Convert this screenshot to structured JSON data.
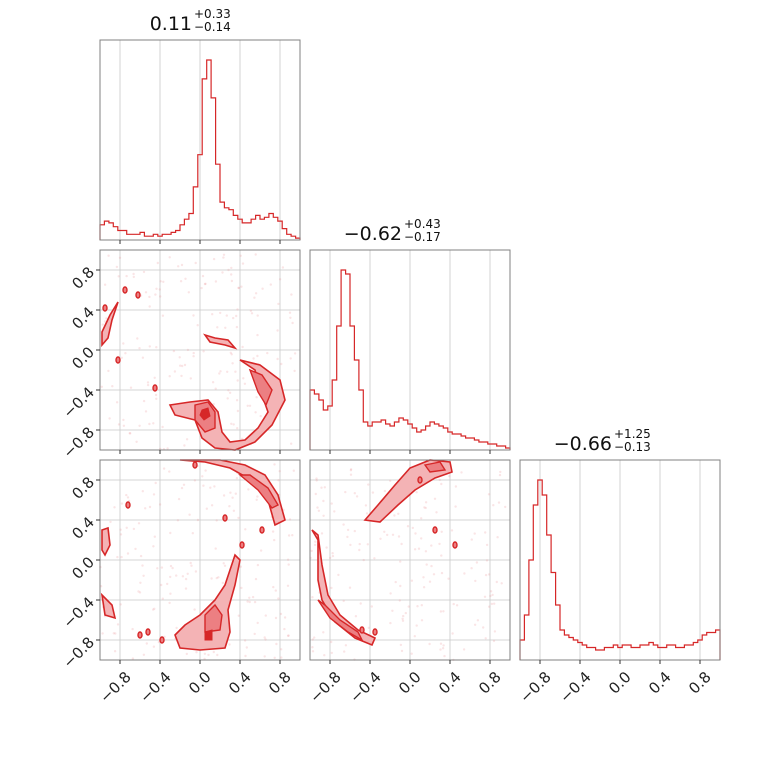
{
  "chart_data": {
    "type": "corner",
    "range": [
      -1,
      1
    ],
    "ticks": [
      -0.8,
      -0.4,
      0.0,
      0.4,
      0.8
    ],
    "tick_labels": [
      "−0.8",
      "−0.4",
      "0.0",
      "0.4",
      "0.8"
    ],
    "color": "#d62728",
    "grid": true,
    "titles": [
      {
        "value": "0.11",
        "plus": "+0.33",
        "minus": "−0.14"
      },
      {
        "value": "−0.62",
        "plus": "+0.43",
        "minus": "−0.17"
      },
      {
        "value": "−0.66",
        "plus": "+1.25",
        "minus": "−0.13"
      }
    ],
    "histograms": [
      {
        "bins_edges": [
          -1.0,
          0.8
        ],
        "values": [
          0.08,
          0.1,
          0.09,
          0.07,
          0.05,
          0.05,
          0.03,
          0.03,
          0.03,
          0.04,
          0.02,
          0.02,
          0.03,
          0.02,
          0.03,
          0.03,
          0.04,
          0.05,
          0.08,
          0.11,
          0.14,
          0.28,
          0.45,
          0.85,
          0.95,
          0.75,
          0.4,
          0.2,
          0.17,
          0.16,
          0.13,
          0.11,
          0.09,
          0.09,
          0.11,
          0.13,
          0.11,
          0.12,
          0.14,
          0.12,
          0.1,
          0.06,
          0.03,
          0.02,
          0.01
        ]
      },
      {
        "values": [
          0.3,
          0.28,
          0.25,
          0.2,
          0.22,
          0.35,
          0.62,
          0.9,
          0.88,
          0.62,
          0.45,
          0.3,
          0.14,
          0.12,
          0.14,
          0.14,
          0.15,
          0.13,
          0.12,
          0.14,
          0.16,
          0.15,
          0.13,
          0.11,
          0.09,
          0.1,
          0.12,
          0.14,
          0.13,
          0.12,
          0.11,
          0.09,
          0.08,
          0.08,
          0.07,
          0.06,
          0.06,
          0.05,
          0.04,
          0.04,
          0.03,
          0.03,
          0.02,
          0.02,
          0.01
        ]
      },
      {
        "values": [
          0.08,
          0.18,
          0.4,
          0.62,
          0.72,
          0.66,
          0.5,
          0.35,
          0.22,
          0.12,
          0.1,
          0.09,
          0.08,
          0.07,
          0.06,
          0.05,
          0.05,
          0.04,
          0.04,
          0.05,
          0.05,
          0.06,
          0.05,
          0.06,
          0.06,
          0.05,
          0.05,
          0.06,
          0.06,
          0.07,
          0.06,
          0.05,
          0.05,
          0.06,
          0.06,
          0.05,
          0.05,
          0.06,
          0.06,
          0.07,
          0.08,
          0.1,
          0.11,
          0.11,
          0.12
        ]
      }
    ]
  }
}
